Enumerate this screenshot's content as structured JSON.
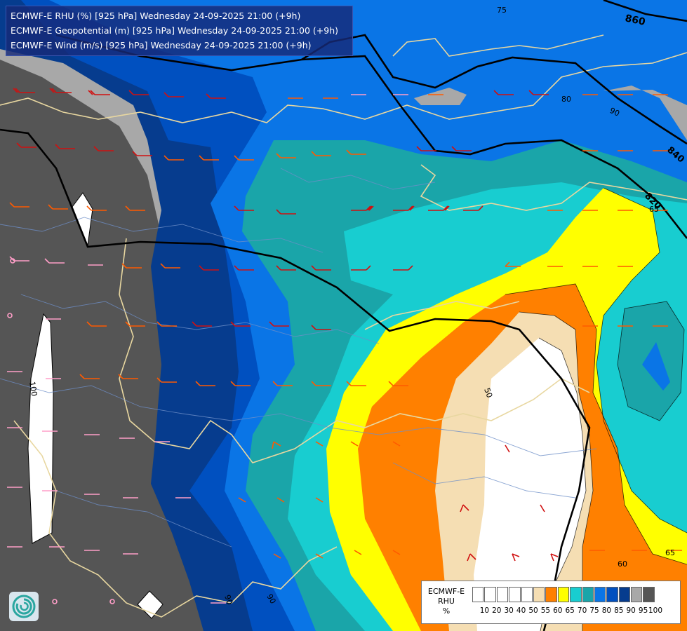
{
  "title": {
    "lines": [
      "ECMWF-E RHU (%) [925 hPa] Wednesday 24-09-2025 21:00 (+9h)",
      "ECMWF-E Geopotential (m) [925 hPa] Wednesday 24-09-2025 21:00 (+9h)",
      "ECMWF-E Wind (m/s) [925 hPa] Wednesday 24-09-2025 21:00 (+9h)"
    ]
  },
  "legend": {
    "name_line1": "ECMWF-E",
    "name_line2": "RHU",
    "unit": "%",
    "bins": [
      {
        "color": "#ffffff"
      },
      {
        "color": "#ffffff"
      },
      {
        "color": "#ffffff"
      },
      {
        "color": "#ffffff"
      },
      {
        "color": "#ffffff"
      },
      {
        "color": "#f5deb3"
      },
      {
        "color": "#ff8000"
      },
      {
        "color": "#ffff00"
      },
      {
        "color": "#18cdd0"
      },
      {
        "color": "#1aa5a9"
      },
      {
        "color": "#0a75e6"
      },
      {
        "color": "#0050c0"
      },
      {
        "color": "#063c8e"
      },
      {
        "color": "#a8a8a8"
      },
      {
        "color": "#555555"
      }
    ],
    "ticks": [
      "10",
      "20",
      "30",
      "40",
      "50",
      "55",
      "60",
      "65",
      "70",
      "75",
      "80",
      "85",
      "90",
      "95",
      "100"
    ]
  },
  "contour_labels": {
    "geopotential": [
      "860",
      "840",
      "820"
    ],
    "rhu": [
      "75",
      "90",
      "65",
      "65",
      "60",
      "100",
      "90",
      "90",
      "80",
      "50"
    ]
  },
  "colors": {
    "rhu_100": "#555555",
    "rhu_95": "#a8a8a8",
    "rhu_90": "#063c8e",
    "rhu_85": "#0050c0",
    "rhu_80": "#0a75e6",
    "rhu_75": "#1aa5a9",
    "rhu_70": "#18cdd0",
    "rhu_65": "#ffff00",
    "rhu_60": "#ff8000",
    "rhu_55": "#f5deb3",
    "rhu_50": "#ffffff",
    "title_bg": "#162a78",
    "border": "#e8d7a0",
    "river": "#6e8fc8",
    "barb_red": "#d01010",
    "barb_orange": "#ff5a00",
    "barb_pink": "#ff9ec8"
  },
  "icons": [
    "logo-icon"
  ]
}
